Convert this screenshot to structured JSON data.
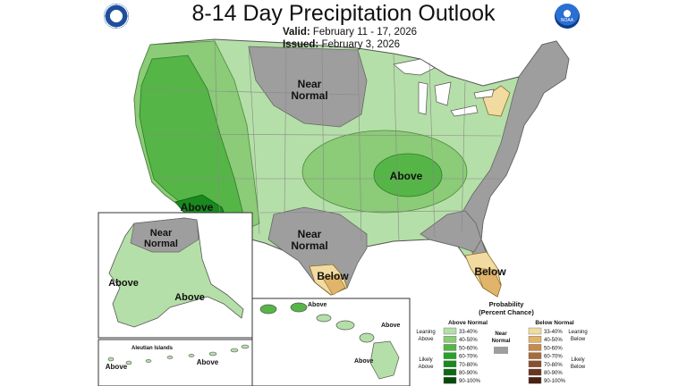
{
  "title": "8-14 Day Precipitation Outlook",
  "valid": {
    "label": "Valid:",
    "value": "February 11 - 17, 2026"
  },
  "issued": {
    "label": "Issued:",
    "value": "February 3, 2026"
  },
  "logos": {
    "left": "department-of-commerce-seal",
    "right": "noaa-logo",
    "right_text": "NOAA"
  },
  "map_labels": {
    "near_normal_north": [
      "Near",
      "Normal"
    ],
    "near_normal_south": [
      "Near",
      "Normal"
    ],
    "above_central": "Above",
    "above_southwest": "Above",
    "below_texas": "Below",
    "below_florida": "Below",
    "alaska_near_normal": [
      "Near",
      "Normal"
    ],
    "alaska_above_west": "Above",
    "alaska_above_south": "Above",
    "aleutian_title": "Aleutian Islands",
    "aleutian_above_west": "Above",
    "aleutian_above_east": "Above",
    "hawaii_above_1": "Above",
    "hawaii_above_2": "Above",
    "hawaii_above_3": "Above"
  },
  "legend": {
    "title": [
      "Probability",
      "(Percent Chance)"
    ],
    "above_header": "Above Normal",
    "below_header": "Below Normal",
    "near_normal": [
      "Near",
      "Normal"
    ],
    "leaning_above": [
      "Leaning",
      "Above"
    ],
    "likely_above": [
      "Likely",
      "Above"
    ],
    "leaning_below": [
      "Leaning",
      "Below"
    ],
    "likely_below": [
      "Likely",
      "Below"
    ],
    "above_bins": [
      {
        "label": "33-40%",
        "color": "#b5dfa8"
      },
      {
        "label": "40-50%",
        "color": "#8ccb78"
      },
      {
        "label": "50-60%",
        "color": "#56b547"
      },
      {
        "label": "60-70%",
        "color": "#28a02a"
      },
      {
        "label": "70-80%",
        "color": "#198a1d"
      },
      {
        "label": "80-90%",
        "color": "#0e6a12"
      },
      {
        "label": "90-100%",
        "color": "#084a0a"
      }
    ],
    "below_bins": [
      {
        "label": "33-40%",
        "color": "#f2dba0"
      },
      {
        "label": "40-50%",
        "color": "#e0b46a"
      },
      {
        "label": "50-60%",
        "color": "#c98a4a"
      },
      {
        "label": "60-70%",
        "color": "#a86a38"
      },
      {
        "label": "70-80%",
        "color": "#8a4e2a"
      },
      {
        "label": "80-90%",
        "color": "#6a3520"
      },
      {
        "label": "90-100%",
        "color": "#4a2215"
      }
    ],
    "near_color": "#9e9e9e"
  }
}
